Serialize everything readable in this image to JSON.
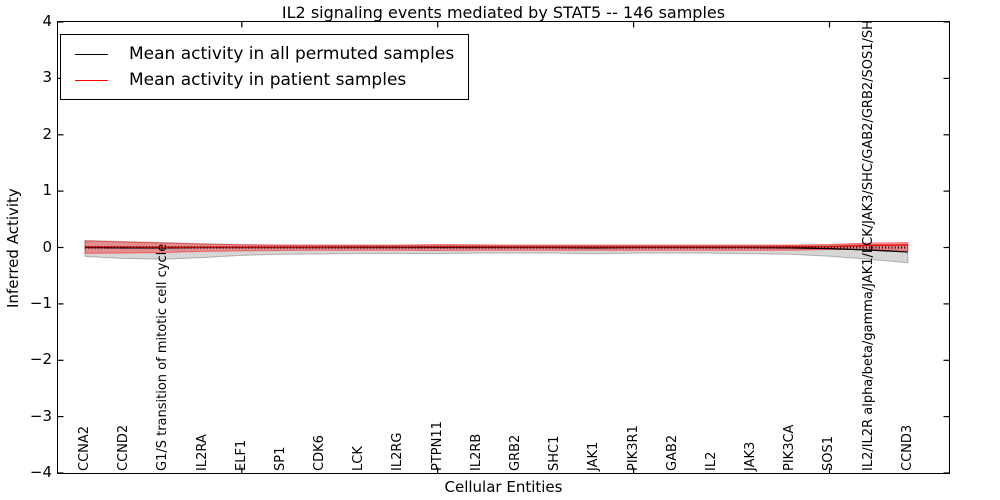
{
  "figure": {
    "title": "IL2 signaling events mediated by STAT5 -- 146 samples",
    "xlabel": "Cellular Entities",
    "ylabel": "Inferred Activity"
  },
  "legend": {
    "entries": [
      {
        "label": "Mean activity in all permuted samples",
        "color": "#000000"
      },
      {
        "label": "Mean activity in patient samples",
        "color": "#ff0000"
      }
    ]
  },
  "chart_data": {
    "type": "line",
    "title": "IL2 signaling events mediated by STAT5 -- 146 samples",
    "xlabel": "Cellular Entities",
    "ylabel": "Inferred Activity",
    "grid": false,
    "legend_position": "upper left",
    "xlim": [
      0.31,
      23.05
    ],
    "ylim": [
      -4,
      4
    ],
    "yticks": [
      4,
      3,
      2,
      1,
      0,
      -1,
      -2,
      -3,
      -4
    ],
    "ytick_labels": [
      "4",
      "3",
      "2",
      "1",
      "0",
      "−1",
      "−2",
      "−3",
      "−4"
    ],
    "xticks_major": [
      5,
      10,
      15,
      20
    ],
    "x": [
      1,
      2,
      3,
      4,
      5,
      6,
      7,
      8,
      9,
      10,
      11,
      12,
      13,
      14,
      15,
      16,
      17,
      18,
      19,
      20,
      21,
      22
    ],
    "categories": [
      "CCNA2",
      "CCND2",
      "G1/S transition of mitotic cell cycle",
      "IL2RA",
      "ELF1",
      "SP1",
      "CDK6",
      "LCK",
      "IL2RG",
      "PTPN11",
      "IL2RB",
      "GRB2",
      "SHC1",
      "JAK1",
      "PIK3R1",
      "GAB2",
      "IL2",
      "JAK3",
      "PIK3CA",
      "SOS1",
      "IL2/IL2R alpha/beta/gamma/JAK1/LCK/JAK3/SHC/GAB2/GRB2/SOS1/SH",
      "CCND3"
    ],
    "zero_reference_line": {
      "y": 0,
      "style": "dotted",
      "color": "#000000"
    },
    "series": [
      {
        "name": "Mean activity in all permuted samples",
        "color": "#000000",
        "band_fill": "rgba(0,0,0,0.16)",
        "band_edge": "rgba(0,0,0,0.25)",
        "mean": [
          0,
          -0.005,
          -0.005,
          0,
          0,
          0,
          0,
          0,
          0,
          0,
          0,
          0,
          0,
          -0.005,
          0,
          0,
          0,
          0,
          -0.005,
          -0.02,
          -0.045,
          -0.08
        ],
        "band_lo": [
          -0.16,
          -0.195,
          -0.21,
          -0.18,
          -0.14,
          -0.12,
          -0.115,
          -0.106,
          -0.106,
          -0.106,
          -0.1,
          -0.1,
          -0.1,
          -0.11,
          -0.1,
          -0.1,
          -0.1,
          -0.11,
          -0.12,
          -0.155,
          -0.21,
          -0.27
        ],
        "band_hi": [
          0.124,
          0.106,
          0.089,
          0.07,
          0.05,
          0.04,
          0.035,
          0.035,
          0.035,
          0.035,
          0.035,
          0.03,
          0.03,
          0.03,
          0.03,
          0.03,
          0.03,
          0.03,
          0.035,
          0.045,
          0.053,
          0.06
        ]
      },
      {
        "name": "Mean activity in patient samples",
        "color": "#ff0000",
        "band_fill": "rgba(255,0,0,0.33)",
        "band_edge": "rgba(255,0,0,0.45)",
        "mean": [
          0.01,
          0.008,
          0.006,
          0.005,
          0.005,
          0.005,
          0.005,
          0.008,
          0.008,
          0.01,
          0.01,
          0.008,
          0.008,
          0.008,
          0.008,
          0.008,
          0.008,
          0.008,
          0.01,
          0.015,
          0.035,
          0.044
        ],
        "band_lo": [
          -0.105,
          -0.097,
          -0.089,
          -0.07,
          -0.06,
          -0.053,
          -0.05,
          -0.048,
          -0.048,
          -0.053,
          -0.05,
          -0.048,
          -0.048,
          -0.048,
          -0.048,
          -0.048,
          -0.048,
          -0.048,
          -0.048,
          -0.036,
          -0.036,
          -0.053
        ],
        "band_hi": [
          0.115,
          0.097,
          0.08,
          0.06,
          0.05,
          0.044,
          0.044,
          0.044,
          0.044,
          0.053,
          0.05,
          0.044,
          0.044,
          0.044,
          0.044,
          0.044,
          0.044,
          0.044,
          0.044,
          0.053,
          0.08,
          0.089
        ]
      }
    ]
  }
}
